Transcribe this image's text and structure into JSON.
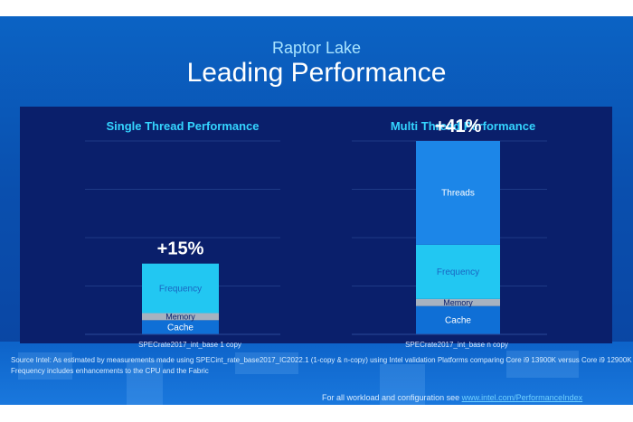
{
  "title": {
    "subtitle": "Raptor Lake",
    "main": "Leading Performance"
  },
  "chart_data": [
    {
      "type": "bar",
      "stacked": true,
      "title": "Single Thread Performance",
      "categories": [
        "SPECrate2017_int_base 1 copy"
      ],
      "total_label": "+15%",
      "segments": [
        {
          "name": "Cache",
          "value": 3.0,
          "color": "#0f6fd6"
        },
        {
          "name": "Memory",
          "value": 1.5,
          "color": "#a7b2c0"
        },
        {
          "name": "Frequency",
          "value": 10.5,
          "color": "#22c7f2"
        }
      ],
      "ylim": [
        0,
        41
      ],
      "grid": true
    },
    {
      "type": "bar",
      "stacked": true,
      "title": "Multi Thread Performance",
      "categories": [
        "SPECrate2017_int_base n copy"
      ],
      "total_label": "+41%",
      "segments": [
        {
          "name": "Cache",
          "value": 6.0,
          "color": "#0f6fd6"
        },
        {
          "name": "Memory",
          "value": 1.5,
          "color": "#a7b2c0"
        },
        {
          "name": "Frequency",
          "value": 11.5,
          "color": "#22c7f2"
        },
        {
          "name": "Threads",
          "value": 22.0,
          "color": "#1c86e8"
        }
      ],
      "ylim": [
        0,
        41
      ],
      "grid": true
    }
  ],
  "footer": {
    "source_line1": "Source Intel: As estimated by measurements made using  SPECint_rate_base2017_IC2022.1 (1-copy & n-copy) using Intel validation Platforms comparing Core i9 13900K versus Core i9 12900K",
    "source_line2": "Frequency includes enhancements to the CPU and the Fabric",
    "workload_note": "For all workload  and configuration  see ",
    "workload_link": "www.intel.com/PerformanceIndex"
  }
}
